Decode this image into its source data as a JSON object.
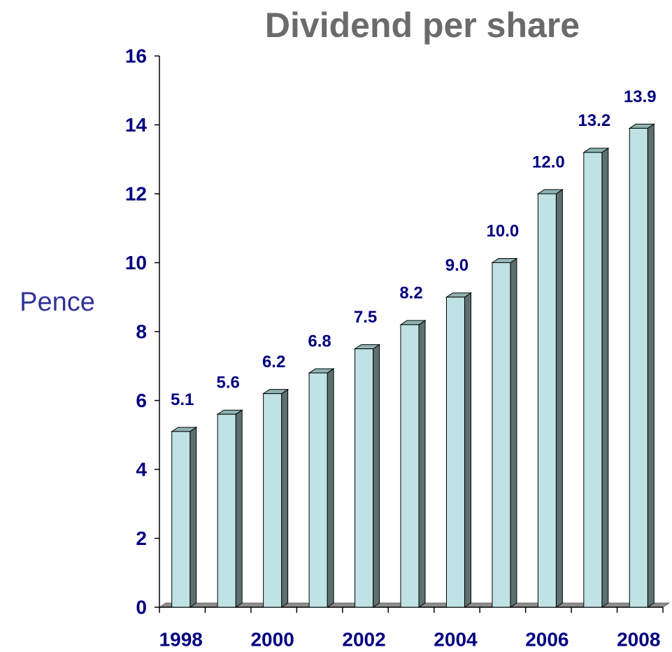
{
  "chart_data": {
    "type": "bar",
    "title": "Dividend per share",
    "y_label": "Pence",
    "categories": [
      "1998",
      null,
      "2000",
      null,
      "2002",
      null,
      "2004",
      null,
      "2006",
      null,
      "2008"
    ],
    "values": [
      5.1,
      5.6,
      6.2,
      6.8,
      7.5,
      8.2,
      9.0,
      10.0,
      12.0,
      13.2,
      13.9
    ],
    "value_labels": [
      "5.1",
      "5.6",
      "6.2",
      "6.8",
      "7.5",
      "8.2",
      "9.0",
      "10.0",
      "12.0",
      "13.2",
      "13.9"
    ],
    "color": "#bfe2e4",
    "ylim": [
      0,
      16
    ],
    "yticks": [
      0,
      2,
      4,
      6,
      8,
      10,
      12,
      14,
      16
    ],
    "grid": false
  }
}
